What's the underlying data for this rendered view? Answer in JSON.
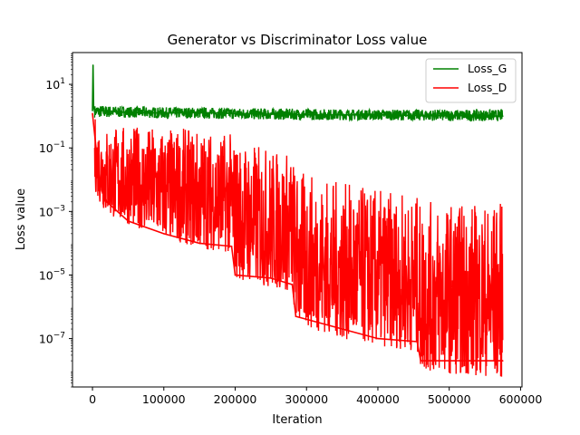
{
  "chart_data": {
    "type": "line",
    "title": "Generator vs Discriminator Loss value",
    "xlabel": "Iteration",
    "ylabel": "Loss value",
    "xlim": [
      -28000,
      602000
    ],
    "ylim": [
      3e-09,
      100
    ],
    "yscale": "log",
    "grid": false,
    "legend_position": "top-right",
    "x_ticks": [
      {
        "value": 0,
        "label": "0"
      },
      {
        "value": 100000,
        "label": "100000"
      },
      {
        "value": 200000,
        "label": "200000"
      },
      {
        "value": 300000,
        "label": "300000"
      },
      {
        "value": 400000,
        "label": "400000"
      },
      {
        "value": 500000,
        "label": "500000"
      },
      {
        "value": 600000,
        "label": "600000"
      }
    ],
    "y_ticks": [
      {
        "value": 10,
        "base": "10",
        "exp": "1"
      },
      {
        "value": 0.1,
        "base": "10",
        "exp": "−1"
      },
      {
        "value": 0.001,
        "base": "10",
        "exp": "−3"
      },
      {
        "value": 1e-05,
        "base": "10",
        "exp": "−5"
      },
      {
        "value": 1e-07,
        "base": "10",
        "exp": "−7"
      }
    ],
    "series": [
      {
        "name": "Loss_G",
        "color": "#008000",
        "points": [
          [
            0,
            1.5
          ],
          [
            800,
            40
          ],
          [
            1600,
            2.0
          ],
          [
            3000,
            1.4
          ],
          [
            10000,
            1.5
          ],
          [
            50000,
            1.3
          ],
          [
            100000,
            1.25
          ],
          [
            150000,
            1.3
          ],
          [
            200000,
            1.2
          ],
          [
            250000,
            1.15
          ],
          [
            300000,
            1.1
          ],
          [
            350000,
            1.1
          ],
          [
            400000,
            1.1
          ],
          [
            450000,
            1.05
          ],
          [
            500000,
            1.05
          ],
          [
            575000,
            1.0
          ]
        ],
        "band": [
          [
            3000,
            0.9,
            2.2
          ],
          [
            50000,
            0.9,
            2.0
          ],
          [
            100000,
            0.85,
            1.9
          ],
          [
            150000,
            0.85,
            1.9
          ],
          [
            200000,
            0.8,
            1.8
          ],
          [
            300000,
            0.75,
            1.7
          ],
          [
            400000,
            0.75,
            1.6
          ],
          [
            500000,
            0.7,
            1.6
          ],
          [
            575000,
            0.7,
            1.6
          ]
        ]
      },
      {
        "name": "Loss_D",
        "color": "#ff0000",
        "points": [
          [
            0,
            1.2
          ],
          [
            5000,
            0.1
          ],
          [
            10000,
            0.01
          ],
          [
            20000,
            0.002
          ],
          [
            50000,
            0.0005
          ],
          [
            100000,
            0.0002
          ],
          [
            150000,
            0.0001
          ],
          [
            195000,
            8e-05
          ],
          [
            200000,
            1e-05
          ],
          [
            250000,
            8e-06
          ],
          [
            280000,
            5e-06
          ],
          [
            285000,
            5e-07
          ],
          [
            350000,
            2e-07
          ],
          [
            400000,
            1e-07
          ],
          [
            455000,
            8e-08
          ],
          [
            460000,
            2e-08
          ],
          [
            500000,
            2e-08
          ],
          [
            575000,
            2e-08
          ]
        ],
        "band": [
          [
            3000,
            0.005,
            1.0
          ],
          [
            10000,
            0.002,
            0.6
          ],
          [
            20000,
            0.0008,
            0.5
          ],
          [
            50000,
            0.0004,
            0.5
          ],
          [
            100000,
            0.00015,
            0.45
          ],
          [
            150000,
            7e-05,
            0.4
          ],
          [
            195000,
            5e-05,
            0.3
          ],
          [
            200000,
            8e-06,
            0.2
          ],
          [
            250000,
            4e-06,
            0.1
          ],
          [
            280000,
            3e-06,
            0.08
          ],
          [
            285000,
            3e-07,
            0.02
          ],
          [
            350000,
            1e-07,
            0.008
          ],
          [
            400000,
            6e-08,
            0.005
          ],
          [
            455000,
            4e-08,
            0.003
          ],
          [
            460000,
            1e-08,
            0.002
          ],
          [
            500000,
            8e-09,
            0.002
          ],
          [
            575000,
            6e-09,
            0.002
          ]
        ]
      }
    ]
  }
}
